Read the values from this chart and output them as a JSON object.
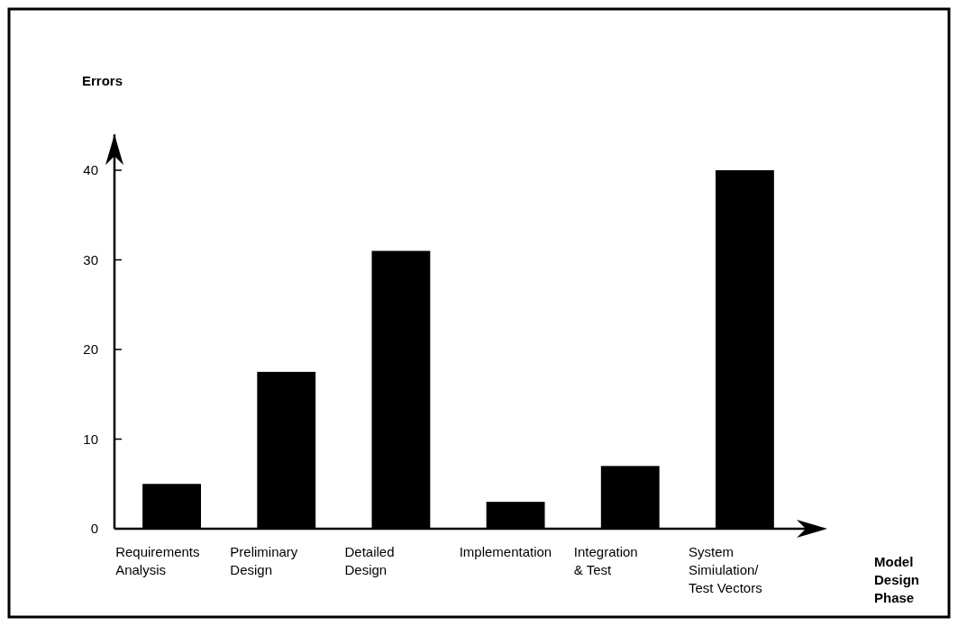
{
  "chart_data": {
    "type": "bar",
    "ylabel": "Errors",
    "xlabel": "Model\nDesign\nPhase",
    "categories": [
      "Requirements\nAnalysis",
      "Preliminary\nDesign",
      "Detailed\nDesign",
      "Implementation",
      "Integration\n& Test",
      "System\nSimiulation/\nTest Vectors"
    ],
    "values": [
      5,
      17.5,
      31,
      3,
      7,
      40
    ],
    "color": "#000000",
    "ylim": [
      0,
      44
    ],
    "yticks": [
      0,
      10,
      20,
      30,
      40
    ],
    "grid": false
  }
}
